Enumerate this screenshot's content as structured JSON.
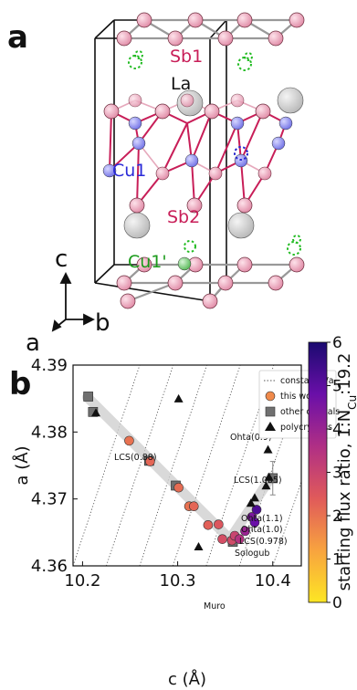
{
  "panel_a": {
    "letter": "a",
    "labels": {
      "sb1": "Sb1",
      "la": "La",
      "cu1": "Cu1",
      "sb2": "Sb2",
      "cu1p": "Cu1'",
      "axis_c": "c",
      "axis_a": "a",
      "axis_b": "b"
    },
    "colors": {
      "sb": "#e8a3b8",
      "la": "#cfcfcf",
      "cu": "#8c8cf0",
      "cu1p": "#6cc46c",
      "bond": "#c81e58",
      "vacancy_green": "#22bb22",
      "vacancy_blue": "#2222cc"
    }
  },
  "panel_b": {
    "letter": "b",
    "legend": {
      "constant_ca": "constant c/a",
      "this_work": "this work",
      "other_crystals": "other crystals",
      "polycrystals": "polycrystals"
    },
    "annotations": {
      "ohta09": "Ohta(0.9)",
      "lcs088": "LCS(0.88)",
      "lcs1085": "LCS(1.085)",
      "ohta11": "Ohta(1.1)",
      "ohta10": "Ohta(1.0)",
      "lcs0978": "LCS(0.978)",
      "sologub": "Sologub",
      "muro": "Muro"
    },
    "colorbar": {
      "label": "starting flux ratio, 1:N",
      "sub": "Cu",
      "suffix": ":19.2",
      "ticks": [
        "0",
        "1",
        "2",
        "3",
        "4",
        "5",
        "6"
      ],
      "colors": [
        "#fde624",
        "#f8a33f",
        "#e05a5a",
        "#b02f85",
        "#6a0fa8",
        "#1a0a70"
      ]
    }
  },
  "chart_data": {
    "type": "scatter",
    "xlabel": "c (Å)",
    "ylabel": "a (Å)",
    "xlim": [
      10.19,
      10.43
    ],
    "ylim": [
      4.36,
      4.39
    ],
    "x_ticks": [
      "10.2",
      "10.3",
      "10.4"
    ],
    "y_ticks": [
      "4.36",
      "4.37",
      "4.38",
      "4.39"
    ],
    "legend_placement": "top-right",
    "series": [
      {
        "name": "this work",
        "marker": "circle",
        "points": [
          {
            "x": 10.249,
            "y": 4.3787,
            "ratio": 2.0
          },
          {
            "x": 10.271,
            "y": 4.3756,
            "ratio": 2.2
          },
          {
            "x": 10.301,
            "y": 4.3717,
            "ratio": 2.1
          },
          {
            "x": 10.312,
            "y": 4.3689,
            "ratio": 2.0
          },
          {
            "x": 10.317,
            "y": 4.3689,
            "ratio": 2.2
          },
          {
            "x": 10.332,
            "y": 4.3661,
            "ratio": 2.3
          },
          {
            "x": 10.343,
            "y": 4.3662,
            "ratio": 2.5
          },
          {
            "x": 10.347,
            "y": 4.364,
            "ratio": 2.7
          },
          {
            "x": 10.357,
            "y": 4.3638,
            "ratio": 2.8
          },
          {
            "x": 10.36,
            "y": 4.3645,
            "ratio": 3.0
          },
          {
            "x": 10.365,
            "y": 4.364,
            "ratio": 3.5
          },
          {
            "x": 10.371,
            "y": 4.3652,
            "ratio": 4.0
          },
          {
            "x": 10.378,
            "y": 4.3673,
            "ratio": 4.5
          },
          {
            "x": 10.381,
            "y": 4.3665,
            "ratio": 4.8
          },
          {
            "x": 10.383,
            "y": 4.3684,
            "ratio": 5.2
          }
        ]
      },
      {
        "name": "other crystals",
        "marker": "square",
        "points": [
          {
            "x": 10.206,
            "y": 4.3853
          },
          {
            "x": 10.211,
            "y": 4.383
          },
          {
            "x": 10.27,
            "y": 4.3757
          },
          {
            "x": 10.298,
            "y": 4.372
          },
          {
            "x": 10.358,
            "y": 4.3636
          },
          {
            "x": 10.4,
            "y": 4.3731
          }
        ]
      },
      {
        "name": "polycrystals",
        "marker": "triangle",
        "points": [
          {
            "x": 10.301,
            "y": 4.3849,
            "label": "Ohta(0.9)"
          },
          {
            "x": 10.214,
            "y": 4.3828,
            "label": "LCS(0.88)"
          },
          {
            "x": 10.395,
            "y": 4.3773,
            "label": "LCS(1.085)"
          },
          {
            "x": 10.396,
            "y": 4.3732,
            "label": "Ohta(1.1)"
          },
          {
            "x": 10.393,
            "y": 4.3719,
            "label": "Ohta(1.0)"
          },
          {
            "x": 10.381,
            "y": 4.3701,
            "label": "LCS(0.978)"
          },
          {
            "x": 10.377,
            "y": 4.3693,
            "label": "Sologub"
          },
          {
            "x": 10.322,
            "y": 4.3628,
            "label": "Muro"
          }
        ]
      }
    ],
    "constant_ca_lines": 9
  }
}
